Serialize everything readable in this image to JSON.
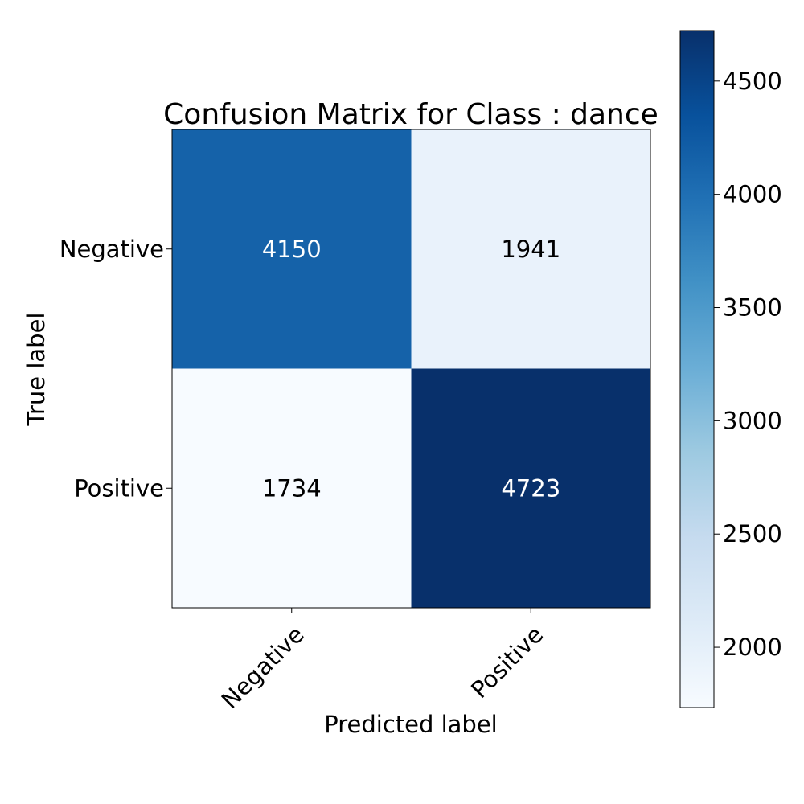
{
  "chart_data": {
    "type": "heatmap",
    "title": "Confusion Matrix for Class : dance",
    "xlabel": "Predicted label",
    "ylabel": "True label",
    "x_categories": [
      "Negative",
      "Positive"
    ],
    "y_categories": [
      "Negative",
      "Positive"
    ],
    "values": [
      [
        4150,
        1941
      ],
      [
        1734,
        4723
      ]
    ],
    "colormap": "Blues",
    "colorbar": {
      "min": 1734,
      "max": 4723,
      "ticks": [
        2000,
        2500,
        3000,
        3500,
        4000,
        4500
      ]
    },
    "text_colors": {
      "dark": "#ffffff",
      "light": "#000000"
    }
  }
}
